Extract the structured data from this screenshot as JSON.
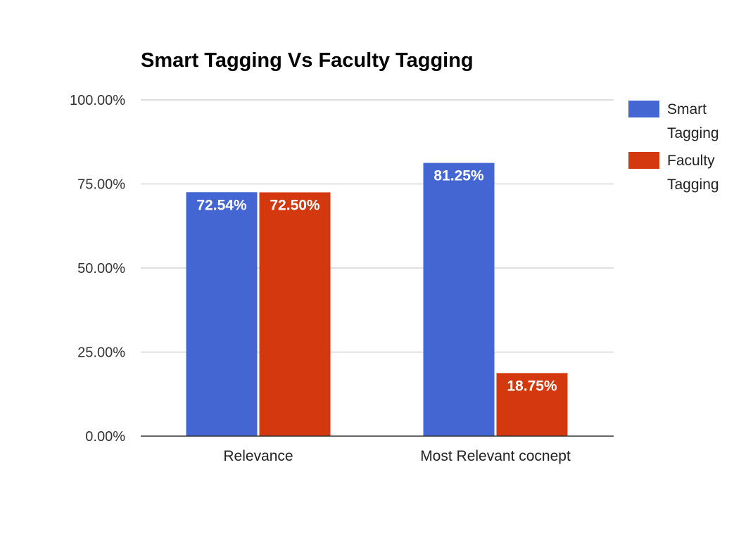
{
  "chart_data": {
    "type": "bar",
    "title": "Smart Tagging Vs Faculty Tagging",
    "xlabel": "",
    "ylabel": "",
    "categories": [
      "Relevance",
      "Most Relevant cocnept"
    ],
    "series": [
      {
        "name": "Smart Tagging",
        "color": "#4466d3",
        "values": [
          72.54,
          81.25
        ],
        "labels": [
          "72.54%",
          "81.25%"
        ]
      },
      {
        "name": "Faculty Tagging",
        "color": "#d4380f",
        "values": [
          72.5,
          18.75
        ],
        "labels": [
          "72.50%",
          "18.75%"
        ]
      }
    ],
    "ylim": [
      0,
      100
    ],
    "yticks": [
      0,
      25,
      50,
      75,
      100
    ],
    "ytick_labels": [
      "0.00%",
      "25.00%",
      "50.00%",
      "75.00%",
      "100.00%"
    ],
    "grid": true,
    "legend_position": "right"
  }
}
